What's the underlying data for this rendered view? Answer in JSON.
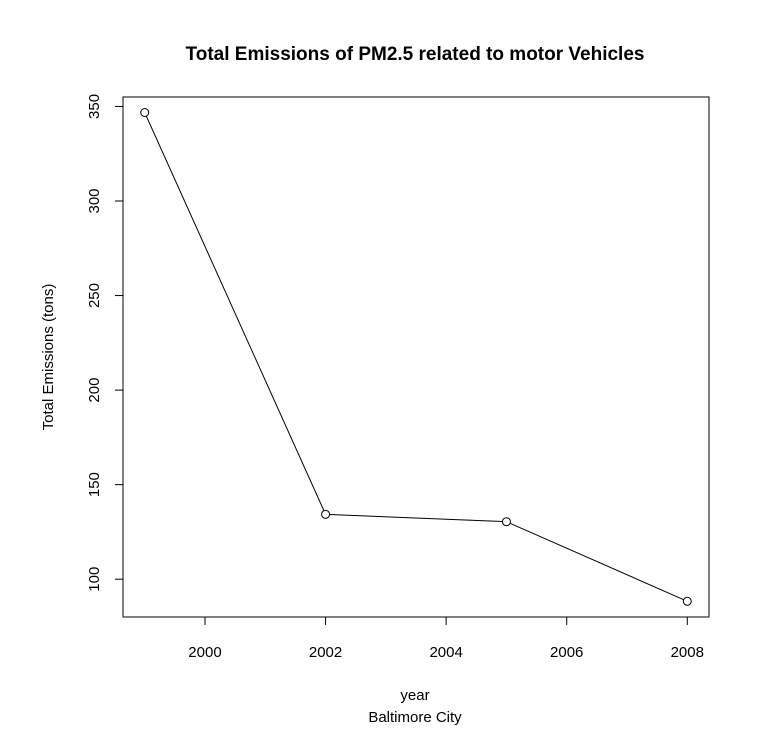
{
  "chart_data": {
    "type": "line",
    "title": "Total Emissions of PM2.5 related to motor Vehicles",
    "xlabel": "year",
    "subtitle": "Baltimore City",
    "ylabel": "Total Emissions (tons)",
    "x": [
      1999,
      2002,
      2005,
      2008
    ],
    "series": [
      {
        "values": [
          346.8,
          134.3,
          130.4,
          88.3
        ]
      }
    ],
    "xlim": [
      1998.64,
      2008.36
    ],
    "ylim": [
      80,
      355
    ],
    "xticks": [
      2000,
      2002,
      2004,
      2006,
      2008
    ],
    "yticks": [
      100,
      150,
      200,
      250,
      300,
      350
    ],
    "marker": "open-circle",
    "line_color": "#000000",
    "grid": false,
    "legend": "none"
  }
}
